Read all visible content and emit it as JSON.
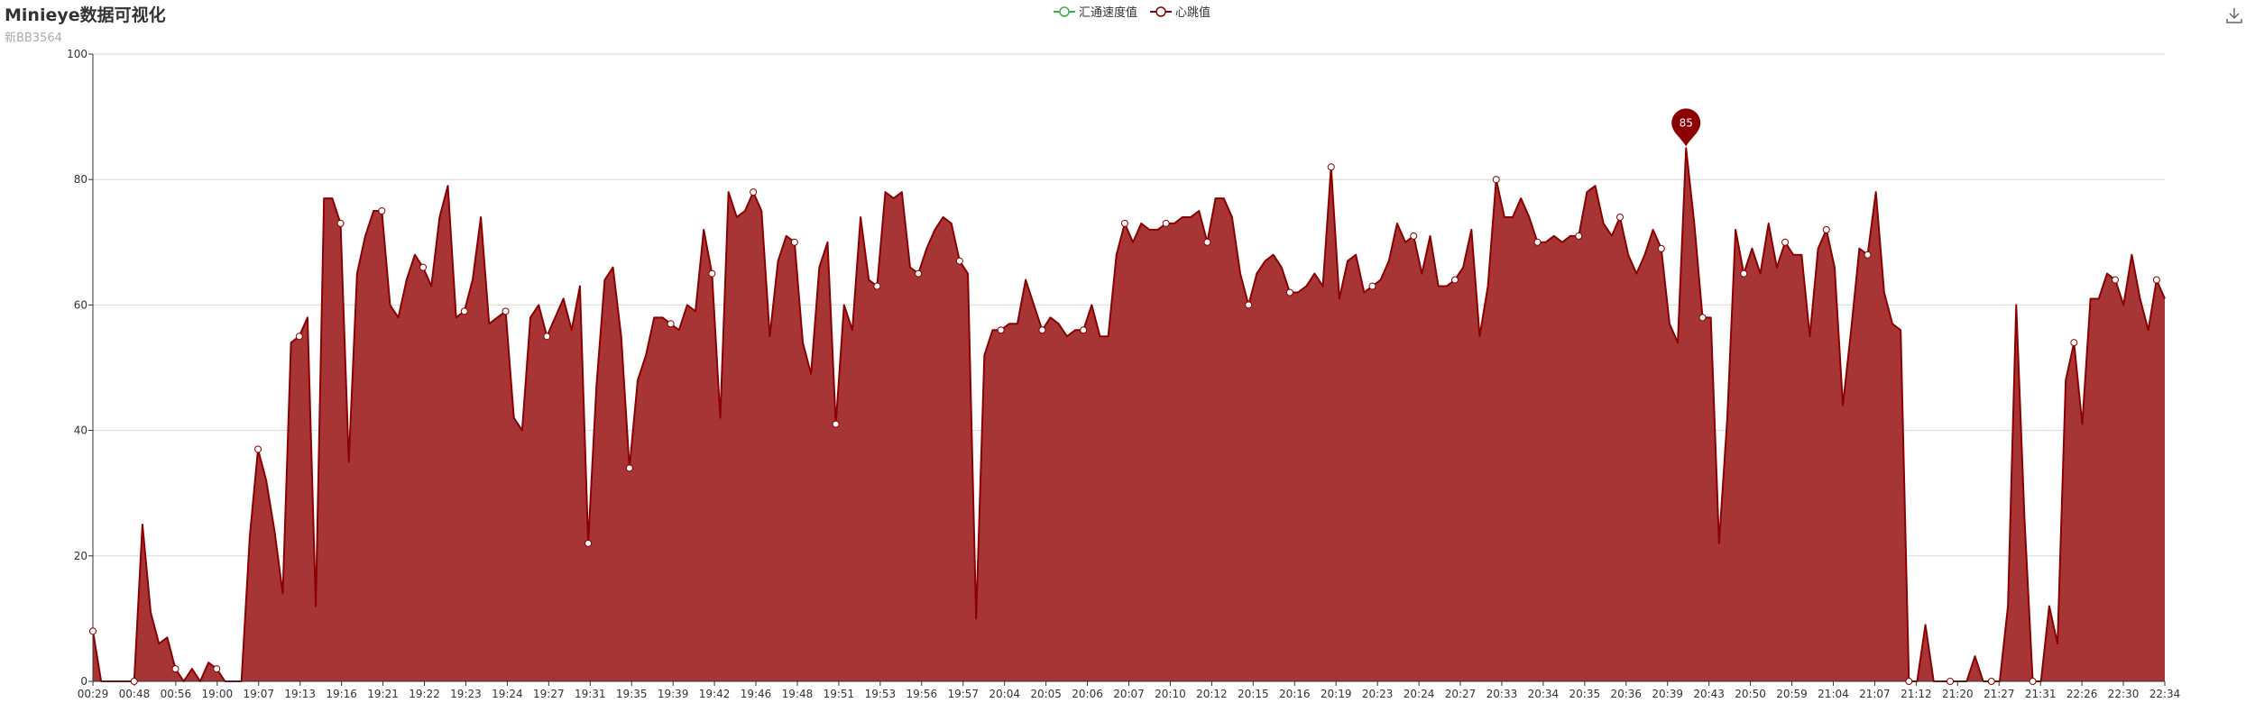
{
  "title": "Minieye数据可视化",
  "subtitle": "新BB3564",
  "legend": [
    {
      "name": "汇通速度值",
      "color": "#3cb043"
    },
    {
      "name": "心跳值",
      "color": "#8b0000"
    }
  ],
  "toolbar": {
    "save_icon": "download-icon"
  },
  "colors": {
    "line": "#8b0000",
    "area": "#a83535"
  },
  "chart_data": {
    "type": "area",
    "title": "Minieye数据可视化",
    "subtitle": "新BB3564",
    "ylim": [
      0,
      100
    ],
    "yticks": [
      0,
      20,
      40,
      60,
      80,
      100
    ],
    "grid": true,
    "legend_position": "top-center",
    "xticks": [
      "00:29",
      "00:48",
      "00:56",
      "19:00",
      "19:07",
      "19:13",
      "19:16",
      "19:21",
      "19:22",
      "19:23",
      "19:24",
      "19:27",
      "19:31",
      "19:35",
      "19:39",
      "19:42",
      "19:46",
      "19:48",
      "19:51",
      "19:53",
      "19:56",
      "19:57",
      "20:04",
      "20:05",
      "20:06",
      "20:07",
      "20:10",
      "20:12",
      "20:15",
      "20:16",
      "20:19",
      "20:23",
      "20:24",
      "20:27",
      "20:33",
      "20:34",
      "20:35",
      "20:36",
      "20:39",
      "20:43",
      "20:50",
      "20:59",
      "21:04",
      "21:07",
      "21:12",
      "21:20",
      "21:27",
      "21:31",
      "22:26",
      "22:30",
      "22:34"
    ],
    "max_marker": {
      "value": 85,
      "label": "85"
    },
    "series": [
      {
        "name": "汇通速度值",
        "values": []
      },
      {
        "name": "心跳值",
        "values": [
          8,
          0,
          0,
          0,
          0,
          0,
          25,
          11,
          6,
          7,
          2,
          0,
          2,
          0,
          3,
          2,
          0,
          0,
          0,
          23,
          37,
          32,
          24,
          14,
          54,
          55,
          58,
          12,
          77,
          77,
          73,
          35,
          65,
          71,
          75,
          75,
          60,
          58,
          64,
          68,
          66,
          63,
          74,
          79,
          58,
          59,
          64,
          74,
          57,
          58,
          59,
          42,
          40,
          58,
          60,
          55,
          58,
          61,
          56,
          63,
          22,
          47,
          64,
          66,
          55,
          34,
          48,
          52,
          58,
          58,
          57,
          56,
          60,
          59,
          72,
          65,
          42,
          78,
          74,
          75,
          78,
          75,
          55,
          67,
          71,
          70,
          54,
          49,
          66,
          70,
          41,
          60,
          56,
          74,
          64,
          63,
          78,
          77,
          78,
          66,
          65,
          69,
          72,
          74,
          73,
          67,
          65,
          10,
          52,
          56,
          56,
          57,
          57,
          64,
          60,
          56,
          58,
          57,
          55,
          56,
          56,
          60,
          55,
          55,
          68,
          73,
          70,
          73,
          72,
          72,
          73,
          73,
          74,
          74,
          75,
          70,
          77,
          77,
          74,
          65,
          60,
          65,
          67,
          68,
          66,
          62,
          62,
          63,
          65,
          63,
          82,
          61,
          67,
          68,
          62,
          63,
          64,
          67,
          73,
          70,
          71,
          65,
          71,
          63,
          63,
          64,
          66,
          72,
          55,
          63,
          80,
          74,
          74,
          77,
          74,
          70,
          70,
          71,
          70,
          71,
          71,
          78,
          79,
          73,
          71,
          74,
          68,
          65,
          68,
          72,
          69,
          57,
          54,
          85,
          73,
          58,
          58,
          22,
          42,
          72,
          65,
          69,
          65,
          73,
          66,
          70,
          68,
          68,
          55,
          69,
          72,
          66,
          44,
          56,
          69,
          68,
          78,
          62,
          57,
          56,
          0,
          0,
          9,
          0,
          0,
          0,
          0,
          0,
          4,
          0,
          0,
          0,
          12,
          60,
          26,
          0,
          0,
          12,
          6,
          48,
          54,
          41,
          61,
          61,
          65,
          64,
          60,
          68,
          61,
          56,
          64,
          61
        ]
      }
    ],
    "symbol_indices": [
      0,
      5,
      10,
      15,
      20,
      25,
      30,
      35,
      40,
      45,
      50,
      55,
      60,
      65,
      70,
      75,
      80,
      85,
      90,
      95,
      100,
      105,
      110,
      115,
      120,
      125,
      130,
      135,
      140,
      145,
      150,
      155,
      160,
      165,
      170,
      175,
      180,
      185,
      190,
      195,
      200,
      205,
      210,
      215,
      220,
      225,
      230,
      235,
      240,
      245,
      250
    ]
  }
}
